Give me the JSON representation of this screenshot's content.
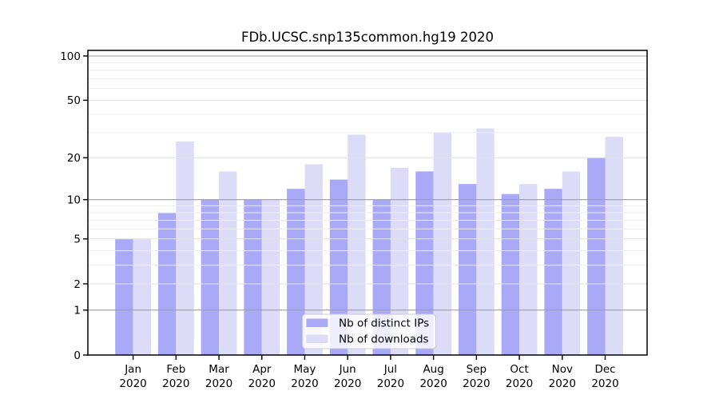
{
  "figure": {
    "background": "#ffffff"
  },
  "chart_data": {
    "type": "bar",
    "title": "FDb.UCSC.snp135common.hg19 2020",
    "y_scale": "log1p",
    "ylim": [
      0,
      100
    ],
    "grid": true,
    "legend_position": "lower center",
    "categories": [
      "Jan",
      "Feb",
      "Mar",
      "Apr",
      "May",
      "Jun",
      "Jul",
      "Aug",
      "Sep",
      "Oct",
      "Nov",
      "Dec"
    ],
    "x_tick_second_line": "2020",
    "series": [
      {
        "name": "Nb of distinct IPs",
        "color": "#a9a9f7",
        "values": [
          5,
          8,
          10,
          10,
          12,
          14,
          10,
          16,
          13,
          11,
          12,
          20
        ]
      },
      {
        "name": "Nb of downloads",
        "color": "#dcdcf9",
        "values": [
          5,
          26,
          16,
          10,
          18,
          29,
          17,
          30,
          32,
          13,
          16,
          28
        ]
      }
    ],
    "y_major_ticks": [
      0,
      1,
      2,
      5,
      10,
      20,
      50,
      100
    ],
    "y_decade_gridlines": [
      1,
      10,
      100
    ],
    "y_minor_gridlines": [
      3,
      4,
      6,
      7,
      8,
      9,
      30,
      40,
      60,
      70,
      80,
      90
    ]
  },
  "colors": {
    "grid_decade": "#9e9e9e",
    "grid_major": "#e2e2e2",
    "grid_minor": "#eeeeee",
    "axis": "#000000",
    "legend_border": "#cccccc",
    "legend_bg": "#ffffff"
  }
}
